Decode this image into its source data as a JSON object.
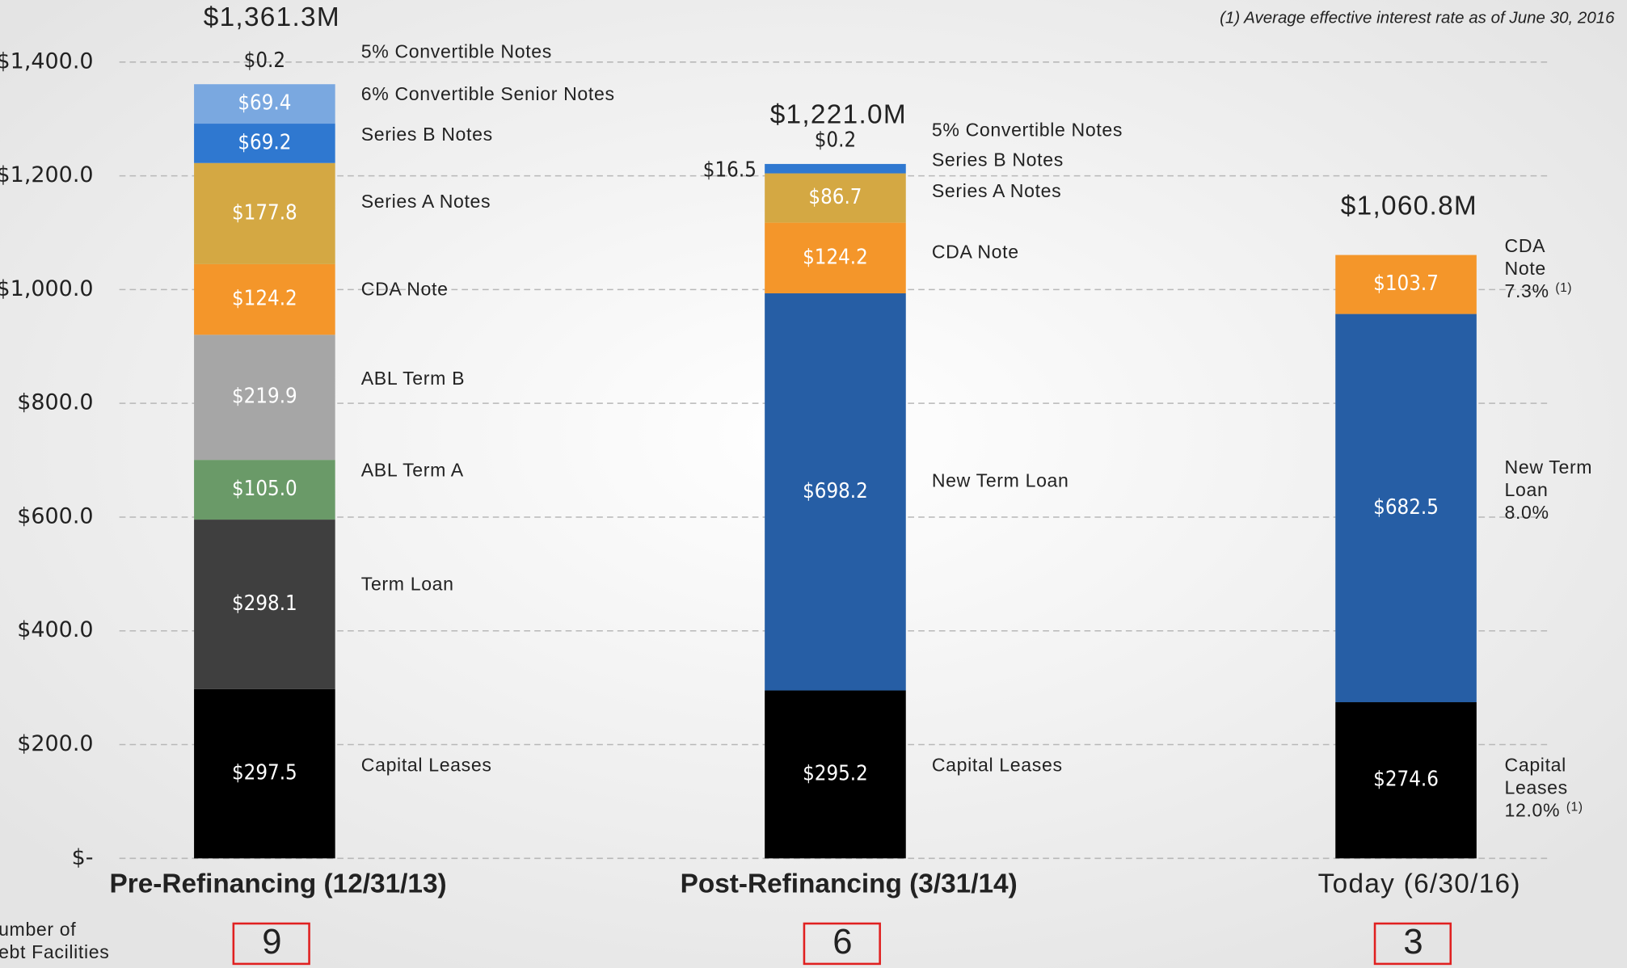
{
  "chart_data": {
    "type": "stacked_bar",
    "note": "(1) Average effective interest rate as of June 30, 2016",
    "categories": [
      "Pre-Refinancing (12/31/13)",
      "Post-Refinancing (3/31/14)",
      "Today (6/30/16)"
    ],
    "total_values": [
      1361.3,
      1221.0,
      1060.8
    ],
    "total_labels": [
      "$1,361.3M",
      "$1,221.0M",
      "$1,060.8M"
    ],
    "facilities_label": [
      "Number of",
      "Debt Facilities"
    ],
    "facility_counts": [
      9,
      6,
      3
    ],
    "ylim": [
      0,
      1400
    ],
    "yticks": [
      {
        "value": 0,
        "label": "$-"
      },
      {
        "value": 200,
        "label": "$200.0"
      },
      {
        "value": 400,
        "label": "$400.0"
      },
      {
        "value": 600,
        "label": "$600.0"
      },
      {
        "value": 800,
        "label": "$800.0"
      },
      {
        "value": 1000,
        "label": "$1,000.0"
      },
      {
        "value": 1200,
        "label": "$1,200.0"
      },
      {
        "value": 1400,
        "label": "$1,400.0"
      }
    ],
    "grid": true,
    "stacks": [
      {
        "segments": [
          {
            "name": "Capital Leases",
            "value": 297.5,
            "value_label": "$297.5",
            "color": "#000000"
          },
          {
            "name": "Term Loan",
            "value": 298.1,
            "value_label": "$298.1",
            "color": "#3f3f3f"
          },
          {
            "name": "ABL Term A",
            "value": 105.0,
            "value_label": "$105.0",
            "color": "#6a9a68"
          },
          {
            "name": "ABL Term B",
            "value": 219.9,
            "value_label": "$219.9",
            "color": "#a6a6a6"
          },
          {
            "name": "CDA Note",
            "value": 124.2,
            "value_label": "$124.2",
            "color": "#f4962a"
          },
          {
            "name": "Series A Notes",
            "value": 177.8,
            "value_label": "$177.8",
            "color": "#d4a843"
          },
          {
            "name": "Series B Notes",
            "value": 69.2,
            "value_label": "$69.2",
            "color": "#2f78d0"
          },
          {
            "name": "6% Convertible Senior Notes",
            "value": 69.4,
            "value_label": "$69.4",
            "color": "#7aa8e0"
          },
          {
            "name": "5% Convertible Notes",
            "value": 0.2,
            "value_label": "$0.2",
            "color": "#b9d2f0"
          }
        ]
      },
      {
        "segments": [
          {
            "name": "Capital Leases",
            "value": 295.2,
            "value_label": "$295.2",
            "color": "#000000"
          },
          {
            "name": "New Term Loan",
            "value": 698.2,
            "value_label": "$698.2",
            "color": "#265ea5"
          },
          {
            "name": "CDA Note",
            "value": 124.2,
            "value_label": "$124.2",
            "color": "#f4962a"
          },
          {
            "name": "Series A Notes",
            "value": 86.7,
            "value_label": "$86.7",
            "color": "#d4a843"
          },
          {
            "name": "Series B Notes",
            "value": 16.5,
            "value_label": "$16.5",
            "color": "#2f78d0"
          },
          {
            "name": "5% Convertible Notes",
            "value": 0.2,
            "value_label": "$0.2",
            "color": "#b9d2f0"
          }
        ]
      },
      {
        "segments": [
          {
            "name_lines": [
              "Capital",
              "Leases"
            ],
            "rate": "12.0%",
            "footnote": "(1)",
            "value": 274.6,
            "value_label": "$274.6",
            "color": "#000000"
          },
          {
            "name_lines": [
              "New Term",
              "Loan"
            ],
            "rate": "8.0%",
            "value": 682.5,
            "value_label": "$682.5",
            "color": "#265ea5"
          },
          {
            "name_lines": [
              "CDA",
              "Note"
            ],
            "rate": "7.3%",
            "footnote": "(1)",
            "value": 103.7,
            "value_label": "$103.7",
            "color": "#f4962a"
          }
        ]
      }
    ]
  }
}
